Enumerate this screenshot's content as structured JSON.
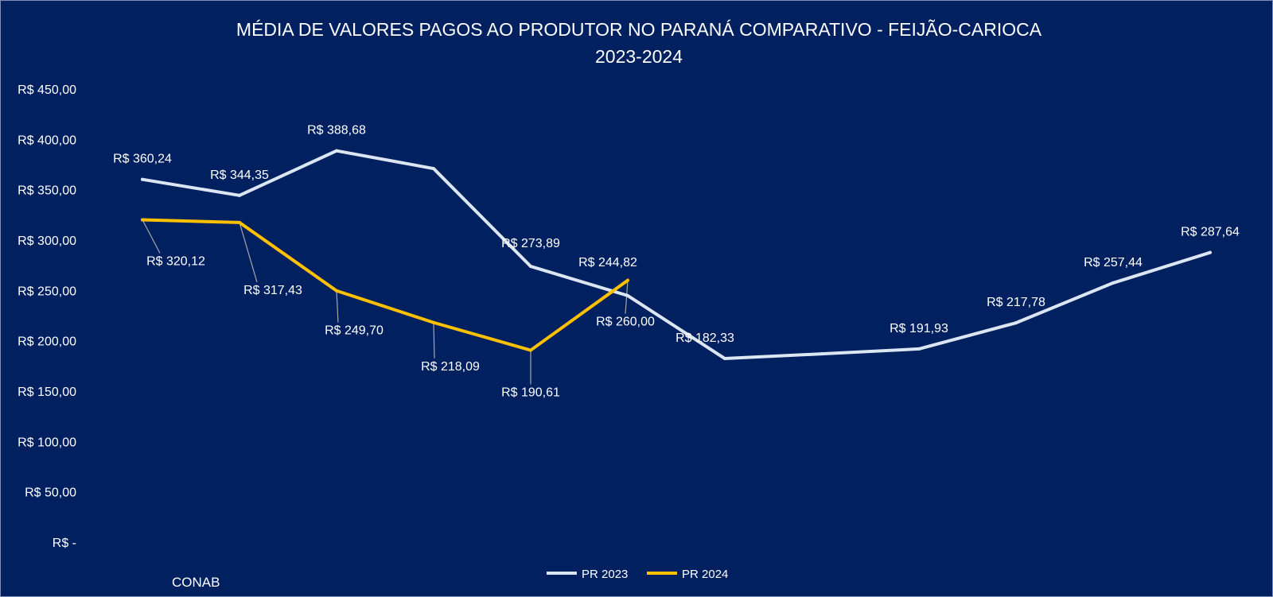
{
  "chart_data": {
    "type": "line",
    "title": "MÉDIA DE VALORES PAGOS AO PRODUTOR NO PARANÁ COMPARATIVO - FEIJÃO-CARIOCA",
    "subtitle": "2023-2024",
    "xlabel": "",
    "ylabel": "",
    "ylim": [
      0,
      450
    ],
    "y_ticks": [
      0,
      50,
      100,
      150,
      200,
      250,
      300,
      350,
      400,
      450
    ],
    "y_tick_labels": [
      "R$ -",
      "R$ 50,00",
      "R$ 100,00",
      "R$ 150,00",
      "R$ 200,00",
      "R$ 250,00",
      "R$ 300,00",
      "R$ 350,00",
      "R$ 400,00",
      "R$ 450,00"
    ],
    "x_count": 12,
    "grid": false,
    "legend_position": "bottom",
    "series": [
      {
        "name": "PR 2023",
        "color": "#dce6f2",
        "values": [
          360.24,
          344.35,
          388.68,
          371.0,
          273.89,
          244.82,
          182.33,
          187.0,
          191.93,
          217.78,
          257.44,
          287.64
        ],
        "labels": [
          "R$ 360,24",
          "R$ 344,35",
          "R$ 388,68",
          null,
          "R$ 273,89",
          "R$ 244,82",
          "R$ 182,33",
          null,
          "R$ 191,93",
          "R$ 217,78",
          "R$ 257,44",
          "R$ 287,64"
        ]
      },
      {
        "name": "PR 2024",
        "color": "#ffc000",
        "values": [
          320.12,
          317.43,
          249.7,
          218.09,
          190.61,
          260.0
        ],
        "labels": [
          "R$ 320,12",
          "R$ 317,43",
          "R$ 249,70",
          "R$ 218,09",
          "R$ 190,61",
          "R$ 260,00"
        ]
      }
    ]
  },
  "source": "CONAB"
}
